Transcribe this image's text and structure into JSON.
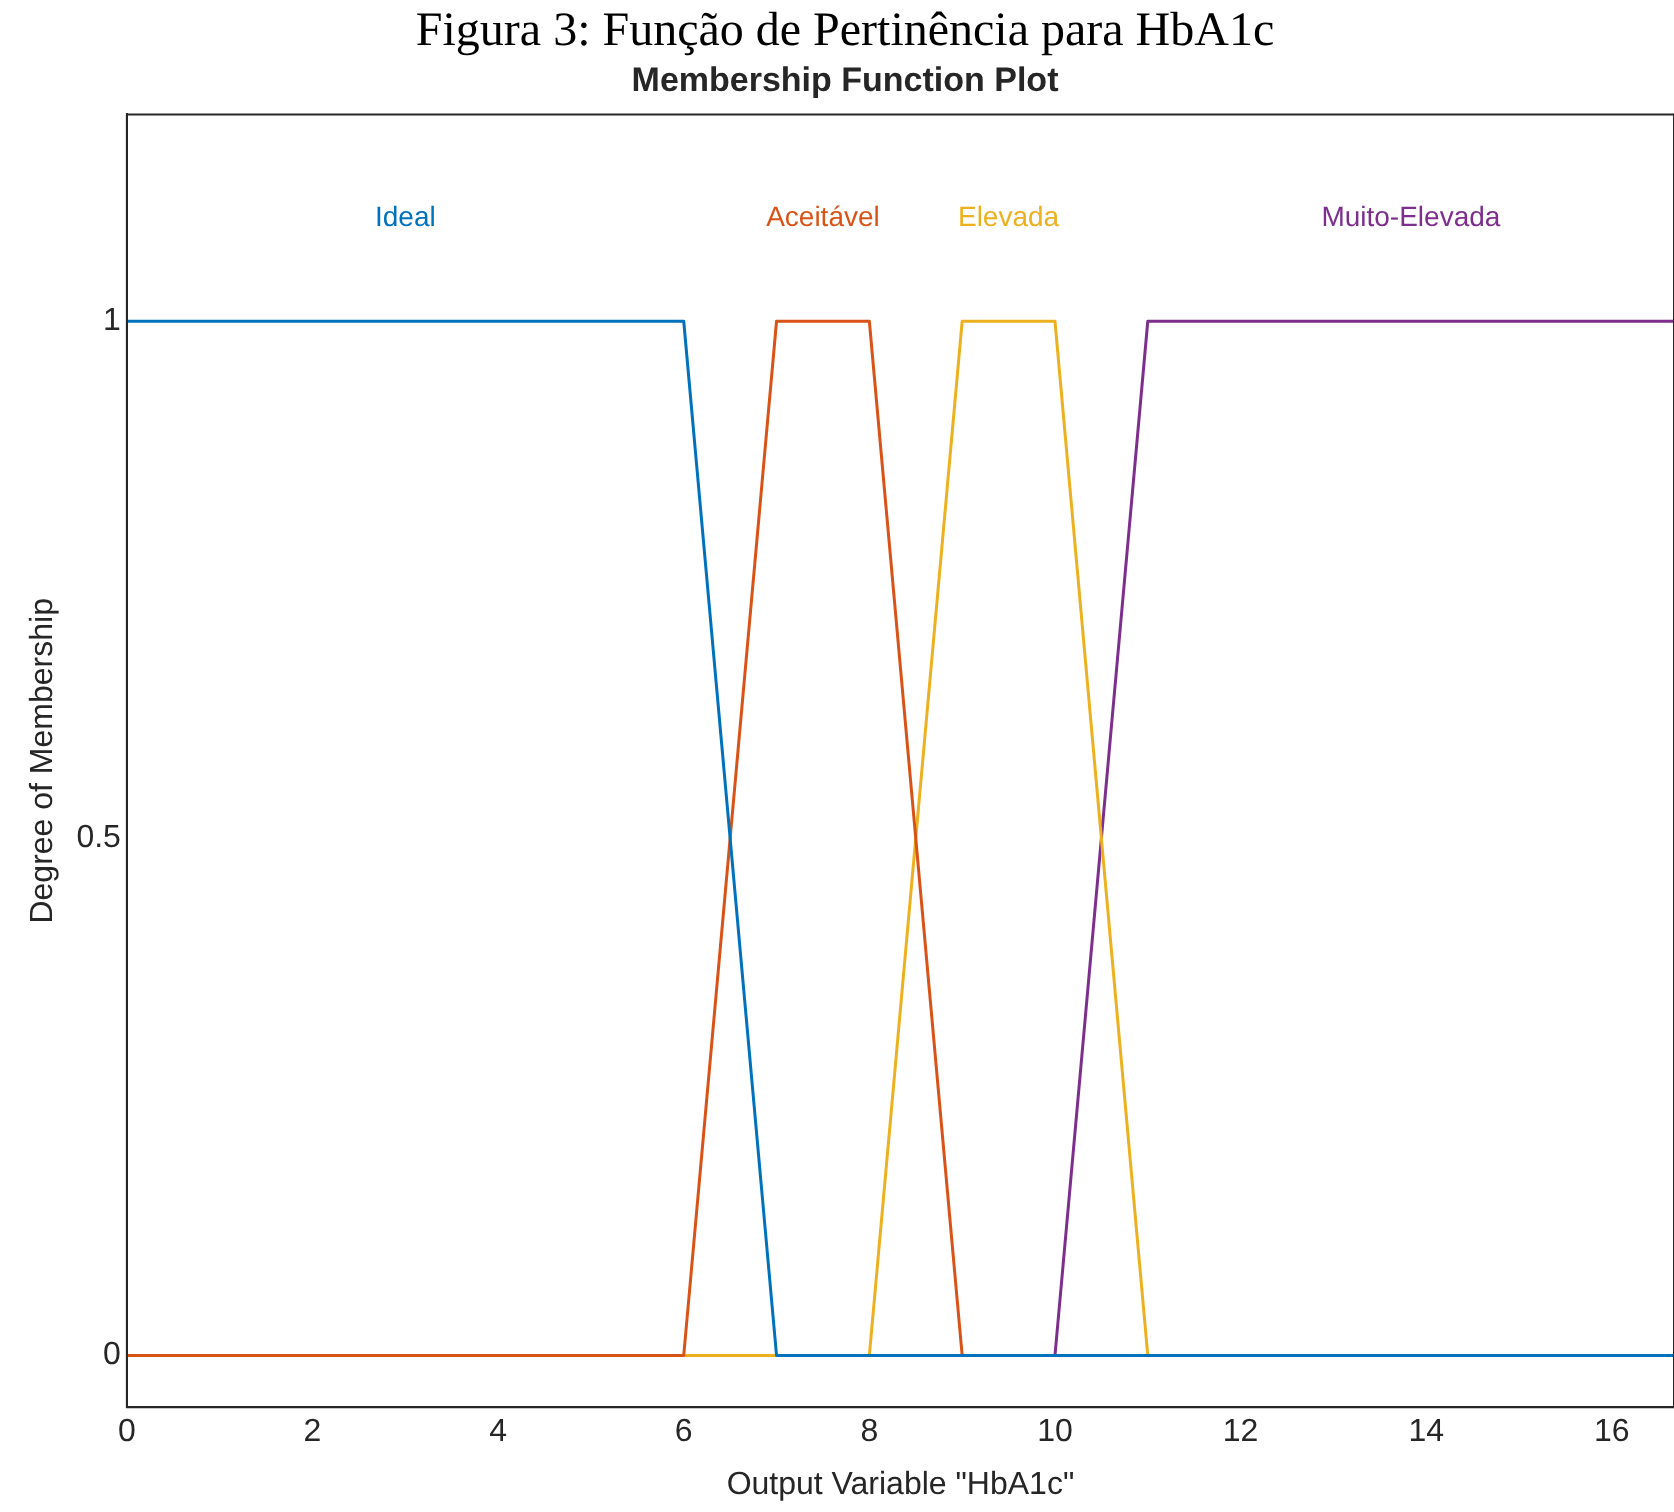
{
  "chart_data": {
    "type": "line",
    "title": "Figura 3: Função de Pertinência para HbA1c",
    "subtitle": "Membership Function Plot",
    "xlabel": "Output Variable \"HbA1c\"",
    "ylabel": "Degree of Membership",
    "xlim": [
      0,
      16.67
    ],
    "ylim": [
      -0.05,
      1.2
    ],
    "xticks": [
      0,
      2,
      4,
      6,
      8,
      10,
      12,
      14,
      16
    ],
    "yticks": [
      0,
      0.5,
      1
    ],
    "grid": false,
    "legend": false,
    "marker": "none",
    "line_style": "solid",
    "series": [
      {
        "name": "Ideal",
        "color": "#0072bd",
        "x": [
          0,
          6,
          7,
          16.67
        ],
        "values": [
          1,
          1,
          0,
          0
        ]
      },
      {
        "name": "Aceitável",
        "color": "#d95319",
        "x": [
          0,
          6,
          7,
          8,
          9,
          16.67
        ],
        "values": [
          0,
          0,
          1,
          1,
          0,
          0
        ]
      },
      {
        "name": "Elevada",
        "color": "#edb120",
        "x": [
          0,
          8,
          9,
          10,
          11,
          16.67
        ],
        "values": [
          0,
          0,
          1,
          1,
          0,
          0
        ]
      },
      {
        "name": "Muito-Elevada",
        "color": "#7e2f8e",
        "x": [
          0,
          10,
          11,
          16.67
        ],
        "values": [
          0,
          0,
          1,
          1
        ]
      }
    ]
  }
}
